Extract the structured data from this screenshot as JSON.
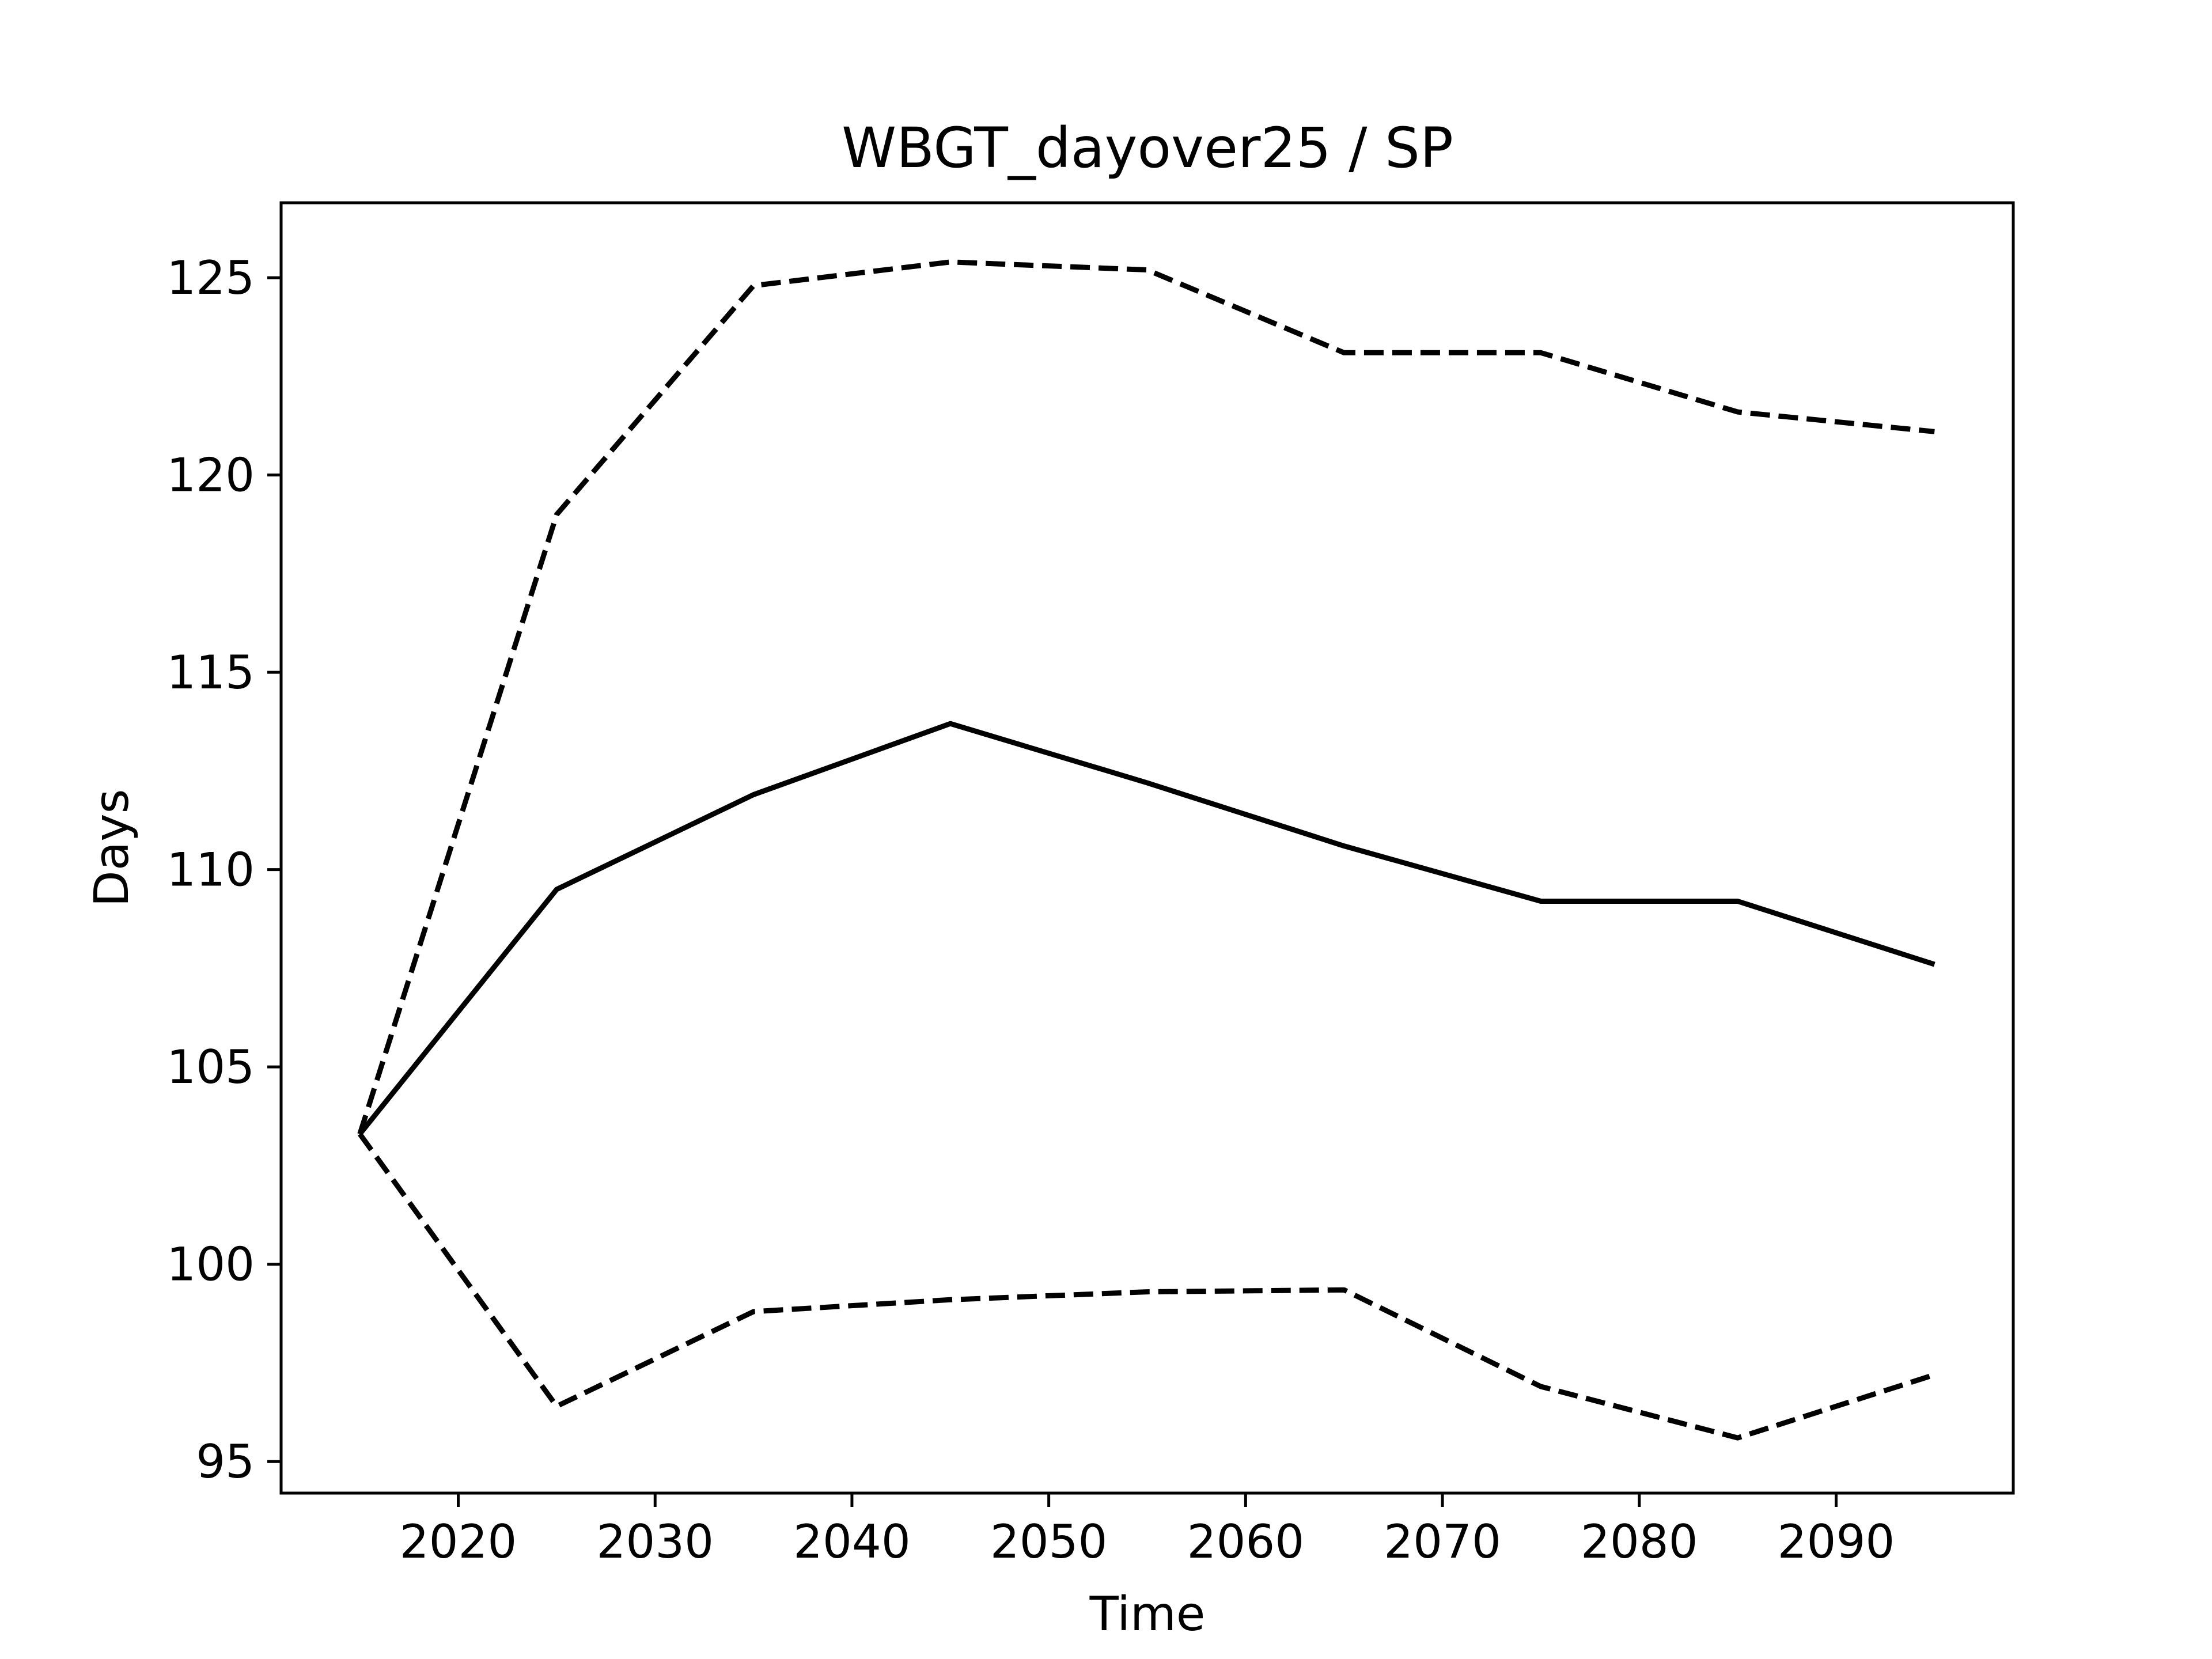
{
  "chart_data": {
    "type": "line",
    "title": "WBGT_dayover25 / SP",
    "xlabel": "Time",
    "ylabel": "Days",
    "x": [
      2015,
      2025,
      2035,
      2045,
      2055,
      2065,
      2075,
      2085,
      2095
    ],
    "series": [
      {
        "style": "solid",
        "color": "#000000",
        "values": [
          103.3,
          109.5,
          111.9,
          113.7,
          112.2,
          110.6,
          109.2,
          109.2,
          107.6
        ]
      },
      {
        "style": "dashed",
        "color": "#000000",
        "values": [
          103.3,
          119.0,
          124.8,
          125.4,
          125.2,
          123.1,
          123.1,
          121.6,
          121.1
        ]
      },
      {
        "style": "dashed",
        "color": "#000000",
        "values": [
          103.3,
          96.4,
          98.8,
          99.1,
          99.3,
          99.35,
          96.9,
          95.6,
          97.2
        ]
      }
    ],
    "xlim": [
      2011,
      2099
    ],
    "ylim": [
      94.2,
      126.9
    ],
    "xticks": [
      2020,
      2030,
      2040,
      2050,
      2060,
      2070,
      2080,
      2090
    ],
    "yticks": [
      95,
      100,
      105,
      110,
      115,
      120,
      125
    ],
    "grid": false,
    "legend": "none"
  }
}
